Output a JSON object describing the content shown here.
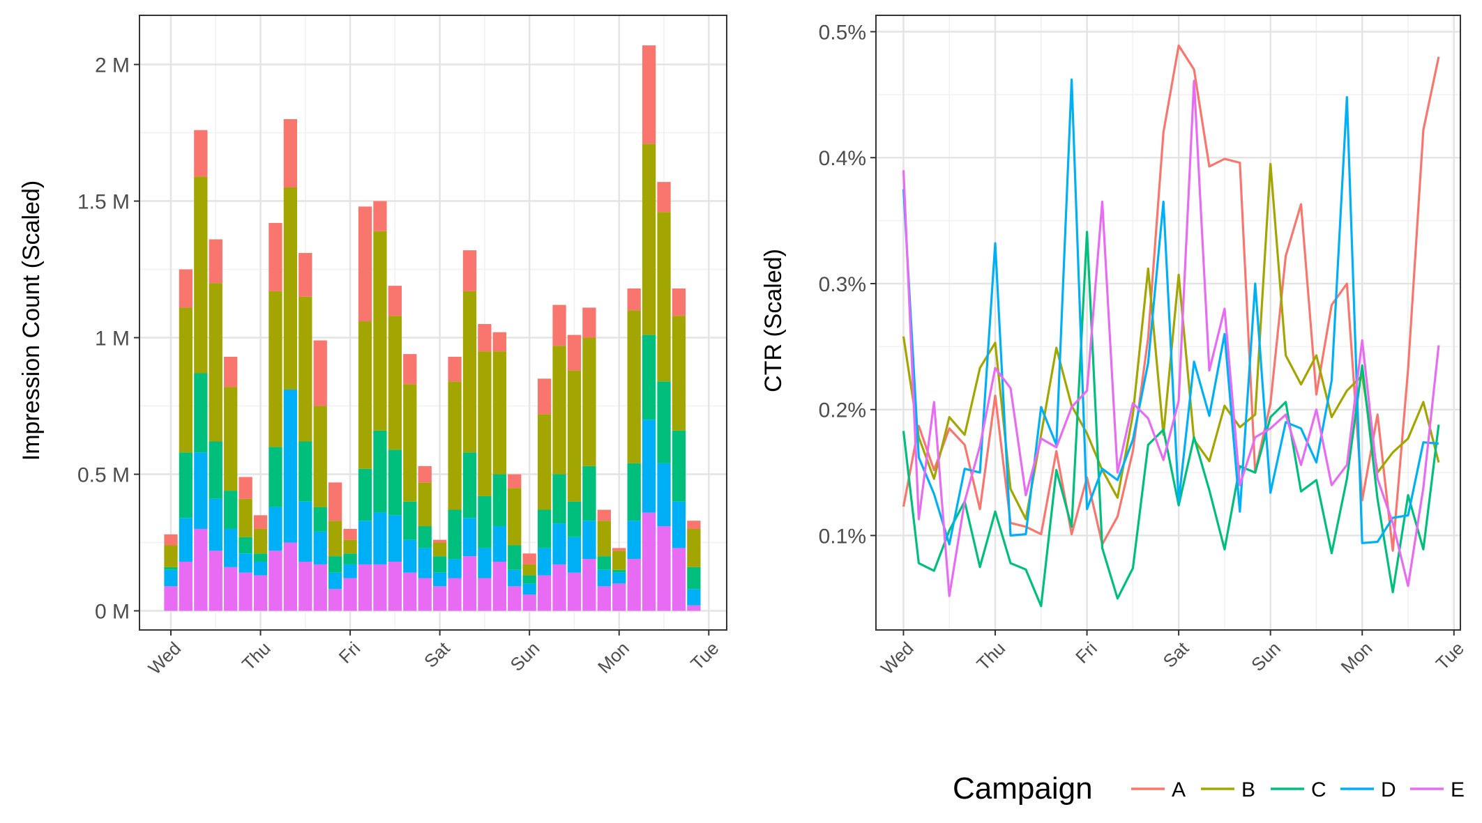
{
  "colors": {
    "A": "#F8766D",
    "B": "#A3A500",
    "C": "#00BF7D",
    "D": "#00B0F6",
    "E": "#E76BF3",
    "grid_major": "#e4e4e4",
    "grid_minor": "#f0f0f0",
    "panel_border": "#333333",
    "tick_text": "#4d4d4d"
  },
  "legend": {
    "title": "Campaign",
    "items": [
      "A",
      "B",
      "C",
      "D",
      "E"
    ]
  },
  "chart_data": [
    {
      "type": "bar",
      "stacked": true,
      "ylabel": "Impression Count (Scaled)",
      "xlabel": "",
      "y_tick_labels": [
        "0 M",
        "0.5 M",
        "1 M",
        "1.5 M",
        "2 M"
      ],
      "y_ticks": [
        0,
        0.5,
        1,
        1.5,
        2
      ],
      "ylim": [
        -0.07,
        2.18
      ],
      "x_tick_labels": [
        "Wed",
        "Thu",
        "Fri",
        "Sat",
        "Sun",
        "Mon",
        "Tue"
      ],
      "x_ticks": [
        0,
        1,
        2,
        3,
        4,
        5,
        6
      ],
      "xlim": [
        -0.35,
        6.2
      ],
      "grid": true,
      "legend_position": "bottom-right",
      "x": [
        0,
        0.1667,
        0.3333,
        0.5,
        0.6667,
        0.8333,
        1,
        1.1667,
        1.3333,
        1.5,
        1.6667,
        1.8333,
        2,
        2.1667,
        2.3333,
        2.5,
        2.6667,
        2.8333,
        3,
        3.1667,
        3.3333,
        3.5,
        3.6667,
        3.8333,
        4,
        4.1667,
        4.3333,
        4.5,
        4.6667,
        4.8333,
        5,
        5.1667,
        5.3333,
        5.5,
        5.6667,
        5.8333
      ],
      "series": [
        {
          "name": "E",
          "values": [
            0.09,
            0.18,
            0.3,
            0.22,
            0.16,
            0.14,
            0.13,
            0.22,
            0.25,
            0.18,
            0.17,
            0.08,
            0.12,
            0.17,
            0.17,
            0.18,
            0.14,
            0.12,
            0.09,
            0.12,
            0.2,
            0.12,
            0.18,
            0.09,
            0.06,
            0.13,
            0.17,
            0.14,
            0.19,
            0.09,
            0.1,
            0.19,
            0.36,
            0.31,
            0.23,
            0.02
          ]
        },
        {
          "name": "D",
          "values": [
            0.06,
            0.16,
            0.28,
            0.19,
            0.14,
            0.07,
            0.05,
            0.16,
            0.56,
            0.22,
            0.12,
            0.06,
            0.05,
            0.16,
            0.19,
            0.17,
            0.12,
            0.11,
            0.05,
            0.07,
            0.14,
            0.11,
            0.13,
            0.06,
            0.04,
            0.1,
            0.15,
            0.13,
            0.14,
            0.06,
            0.04,
            0.14,
            0.34,
            0.23,
            0.17,
            0.06
          ]
        },
        {
          "name": "C",
          "values": [
            0.01,
            0.24,
            0.29,
            0.21,
            0.14,
            0.06,
            0.03,
            0.22,
            0.0,
            0.22,
            0.09,
            0.06,
            0.04,
            0.19,
            0.3,
            0.24,
            0.14,
            0.08,
            0.06,
            0.18,
            0.24,
            0.19,
            0.19,
            0.09,
            0.03,
            0.14,
            0.18,
            0.13,
            0.2,
            0.05,
            0.01,
            0.21,
            0.31,
            0.3,
            0.26,
            0.08
          ]
        },
        {
          "name": "B",
          "values": [
            0.08,
            0.53,
            0.72,
            0.58,
            0.38,
            0.14,
            0.09,
            0.57,
            0.74,
            0.53,
            0.37,
            0.13,
            0.05,
            0.54,
            0.73,
            0.49,
            0.43,
            0.16,
            0.05,
            0.47,
            0.59,
            0.53,
            0.45,
            0.21,
            0.04,
            0.35,
            0.47,
            0.48,
            0.47,
            0.13,
            0.07,
            0.56,
            0.7,
            0.62,
            0.42,
            0.14
          ]
        },
        {
          "name": "A",
          "values": [
            0.04,
            0.14,
            0.17,
            0.16,
            0.11,
            0.08,
            0.05,
            0.25,
            0.25,
            0.16,
            0.24,
            0.14,
            0.04,
            0.42,
            0.11,
            0.11,
            0.11,
            0.06,
            0.01,
            0.09,
            0.15,
            0.1,
            0.07,
            0.05,
            0.04,
            0.13,
            0.15,
            0.13,
            0.11,
            0.04,
            0.01,
            0.08,
            0.36,
            0.11,
            0.1,
            0.03
          ]
        }
      ]
    },
    {
      "type": "line",
      "ylabel": "CTR (Scaled)",
      "xlabel": "",
      "y_tick_labels": [
        "0.1%",
        "0.2%",
        "0.3%",
        "0.4%",
        "0.5%"
      ],
      "y_ticks": [
        0.1,
        0.2,
        0.3,
        0.4,
        0.5
      ],
      "ylim": [
        0.025,
        0.513
      ],
      "x_tick_labels": [
        "Wed",
        "Thu",
        "Fri",
        "Sat",
        "Sun",
        "Mon",
        "Tue"
      ],
      "x_ticks": [
        0,
        1,
        2,
        3,
        4,
        5,
        6
      ],
      "xlim": [
        -0.3,
        6.07
      ],
      "grid": true,
      "legend_position": "bottom-right",
      "x": [
        0,
        0.1667,
        0.3333,
        0.5,
        0.6667,
        0.8333,
        1,
        1.1667,
        1.3333,
        1.5,
        1.6667,
        1.8333,
        2,
        2.1667,
        2.3333,
        2.5,
        2.6667,
        2.8333,
        3,
        3.1667,
        3.3333,
        3.5,
        3.6667,
        3.8333,
        4,
        4.1667,
        4.3333,
        4.5,
        4.6667,
        4.8333,
        5,
        5.1667,
        5.3333,
        5.5,
        5.6667,
        5.8333
      ],
      "series": [
        {
          "name": "A",
          "values": [
            0.123,
            0.187,
            0.152,
            0.185,
            0.172,
            0.121,
            0.211,
            0.11,
            0.107,
            0.101,
            0.167,
            0.101,
            0.146,
            0.093,
            0.115,
            0.167,
            0.257,
            0.42,
            0.489,
            0.47,
            0.393,
            0.399,
            0.396,
            0.15,
            0.205,
            0.322,
            0.363,
            0.212,
            0.283,
            0.3,
            0.128,
            0.196,
            0.088,
            0.232,
            0.422,
            0.48
          ]
        },
        {
          "name": "B",
          "values": [
            0.258,
            0.178,
            0.145,
            0.194,
            0.18,
            0.233,
            0.253,
            0.137,
            0.113,
            0.18,
            0.249,
            0.203,
            0.181,
            0.152,
            0.13,
            0.196,
            0.312,
            0.18,
            0.307,
            0.176,
            0.159,
            0.203,
            0.186,
            0.196,
            0.395,
            0.243,
            0.22,
            0.243,
            0.194,
            0.215,
            0.227,
            0.15,
            0.166,
            0.177,
            0.206,
            0.158
          ]
        },
        {
          "name": "C",
          "values": [
            0.183,
            0.078,
            0.072,
            0.104,
            0.127,
            0.075,
            0.119,
            0.078,
            0.073,
            0.044,
            0.152,
            0.107,
            0.341,
            0.09,
            0.05,
            0.074,
            0.172,
            0.184,
            0.124,
            0.178,
            0.136,
            0.089,
            0.155,
            0.15,
            0.194,
            0.206,
            0.135,
            0.144,
            0.086,
            0.145,
            0.235,
            0.129,
            0.055,
            0.132,
            0.089,
            0.188
          ]
        },
        {
          "name": "D",
          "values": [
            0.375,
            0.162,
            0.133,
            0.093,
            0.153,
            0.15,
            0.332,
            0.1,
            0.101,
            0.202,
            0.172,
            0.462,
            0.121,
            0.153,
            0.144,
            0.176,
            0.237,
            0.365,
            0.127,
            0.238,
            0.195,
            0.26,
            0.119,
            0.3,
            0.134,
            0.19,
            0.185,
            0.158,
            0.223,
            0.448,
            0.094,
            0.095,
            0.114,
            0.116,
            0.174,
            0.173
          ]
        },
        {
          "name": "E",
          "values": [
            0.39,
            0.113,
            0.206,
            0.052,
            0.127,
            0.171,
            0.233,
            0.217,
            0.132,
            0.177,
            0.17,
            0.202,
            0.215,
            0.365,
            0.15,
            0.205,
            0.193,
            0.16,
            0.207,
            0.461,
            0.231,
            0.28,
            0.14,
            0.178,
            0.185,
            0.196,
            0.156,
            0.2,
            0.14,
            0.156,
            0.255,
            0.145,
            0.11,
            0.06,
            0.138,
            0.251
          ]
        }
      ]
    }
  ]
}
